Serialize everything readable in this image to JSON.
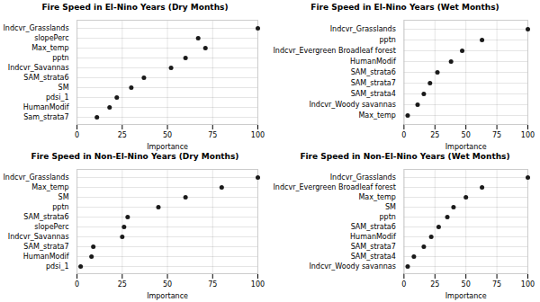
{
  "chart_data": [
    {
      "type": "dot",
      "orientation": "horizontal",
      "title": "Fire Speed in El-Nino Years (Dry Months)",
      "categories": [
        "Indcvr_Grasslands",
        "slopePerc",
        "Max_temp",
        "pptn",
        "Indcvr_Savannas",
        "SAM_strata6",
        "SM",
        "pdsi_1",
        "HumanModif",
        "Sam_strata7"
      ],
      "values": [
        100,
        67,
        71,
        60,
        52,
        37,
        30,
        22,
        18,
        11
      ],
      "xlabel": "Importance",
      "xlim": [
        0,
        100
      ],
      "xticks": [
        0,
        25,
        50,
        75,
        100
      ],
      "grid": true,
      "color": "#1a1a1a"
    },
    {
      "type": "dot",
      "orientation": "horizontal",
      "title": "Fire Speed in El-Nino Years (Wet Months)",
      "categories": [
        "Indcvr_Grasslands",
        "pptn",
        "Indcvr_Evergreen Broadleaf forest",
        "HumanModif",
        "SAM_strata6",
        "SAM_strata7",
        "SAM_strata4",
        "Indcvr_Woody savannas",
        "Max_temp"
      ],
      "values": [
        100,
        63,
        47,
        38,
        27,
        21,
        16,
        11,
        3
      ],
      "xlabel": "Importance",
      "xlim": [
        0,
        100
      ],
      "xticks": [
        0,
        25,
        50,
        75,
        100
      ],
      "grid": true,
      "color": "#1a1a1a"
    },
    {
      "type": "dot",
      "orientation": "horizontal",
      "title": "Fire Speed in Non-El-Nino Years (Dry Months)",
      "categories": [
        "Indcvr_Grasslands",
        "Max_temp",
        "SM",
        "pptn",
        "SAM_strata6",
        "slopePerc",
        "Indcvr_Savannas",
        "SAM_strata7",
        "HumanModif",
        "pdsi_1"
      ],
      "values": [
        100,
        80,
        60,
        45,
        28,
        26,
        25,
        9,
        8,
        2
      ],
      "xlabel": "Importance",
      "xlim": [
        0,
        100
      ],
      "xticks": [
        0,
        25,
        50,
        75,
        100
      ],
      "grid": true,
      "color": "#1a1a1a"
    },
    {
      "type": "dot",
      "orientation": "horizontal",
      "title": "Fire Speed in Non-El-Nino Years (Wet Months)",
      "categories": [
        "Indcvr_Grasslands",
        "Indcvr_Evergreen Broadleaf forest",
        "Max_temp",
        "SM",
        "pptn",
        "SAM_strata6",
        "HumanModif",
        "SAM_strata7",
        "SAM_strata4",
        "Indcvr_Woody savannas"
      ],
      "values": [
        100,
        63,
        50,
        40,
        35,
        28,
        22,
        16,
        8,
        3
      ],
      "xlabel": "Importance",
      "xlim": [
        0,
        100
      ],
      "xticks": [
        0,
        25,
        50,
        75,
        100
      ],
      "grid": true,
      "color": "#1a1a1a"
    }
  ]
}
